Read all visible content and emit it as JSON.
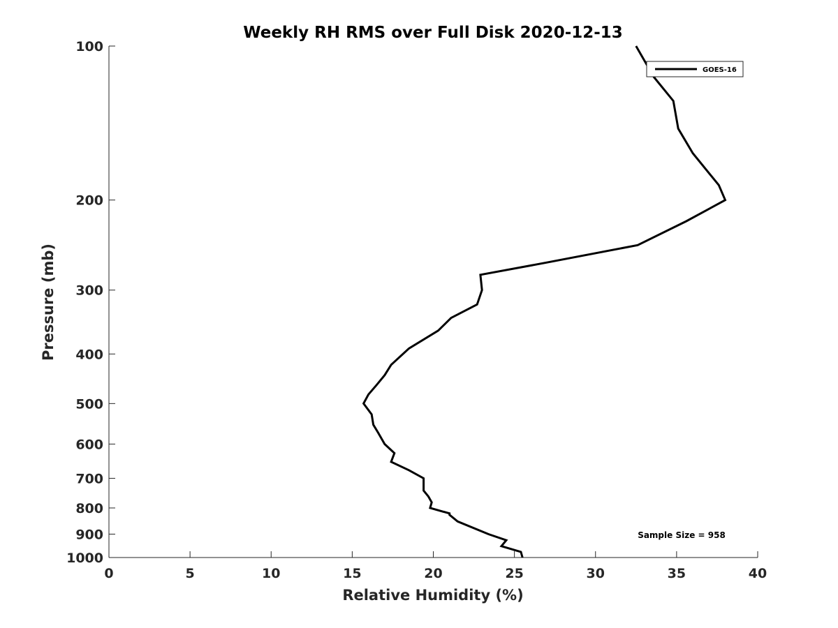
{
  "chart_data": {
    "type": "line",
    "title": "Weekly RH RMS over Full Disk 2020-12-13",
    "xlabel": "Relative Humidity (%)",
    "ylabel": "Pressure (mb)",
    "xlim": [
      0,
      40
    ],
    "ylim": [
      100,
      1000
    ],
    "yscale": "log",
    "yreversed": true,
    "grid": false,
    "xticks": [
      "0",
      "5",
      "10",
      "15",
      "20",
      "25",
      "30",
      "35",
      "40"
    ],
    "yticks": [
      "100",
      "200",
      "300",
      "400",
      "500",
      "600",
      "700",
      "800",
      "900",
      "1000"
    ],
    "legend_position": "top-right",
    "annotation": "Sample Size = 958",
    "series": [
      {
        "name": "GOES-16",
        "color": "#000000",
        "points": [
          [
            25.5,
            1000
          ],
          [
            25.4,
            975
          ],
          [
            24.2,
            950
          ],
          [
            24.5,
            925
          ],
          [
            23.4,
            900
          ],
          [
            21.5,
            850
          ],
          [
            21.0,
            825
          ],
          [
            21.0,
            820
          ],
          [
            19.8,
            800
          ],
          [
            19.9,
            780
          ],
          [
            19.7,
            760
          ],
          [
            19.4,
            740
          ],
          [
            19.4,
            700
          ],
          [
            18.5,
            675
          ],
          [
            17.4,
            650
          ],
          [
            17.6,
            625
          ],
          [
            17.0,
            600
          ],
          [
            16.6,
            570
          ],
          [
            16.3,
            550
          ],
          [
            16.2,
            525
          ],
          [
            15.7,
            500
          ],
          [
            16.0,
            480
          ],
          [
            16.5,
            460
          ],
          [
            17.0,
            440
          ],
          [
            17.4,
            420
          ],
          [
            18.5,
            390
          ],
          [
            20.3,
            360
          ],
          [
            21.1,
            340
          ],
          [
            22.7,
            320
          ],
          [
            23.0,
            300
          ],
          [
            22.9,
            280
          ],
          [
            27.0,
            265
          ],
          [
            32.6,
            245
          ],
          [
            35.6,
            220
          ],
          [
            38.0,
            200
          ],
          [
            37.6,
            187
          ],
          [
            36.0,
            162
          ],
          [
            35.1,
            145
          ],
          [
            34.8,
            128
          ],
          [
            33.6,
            115
          ],
          [
            32.5,
            100
          ]
        ]
      }
    ]
  }
}
